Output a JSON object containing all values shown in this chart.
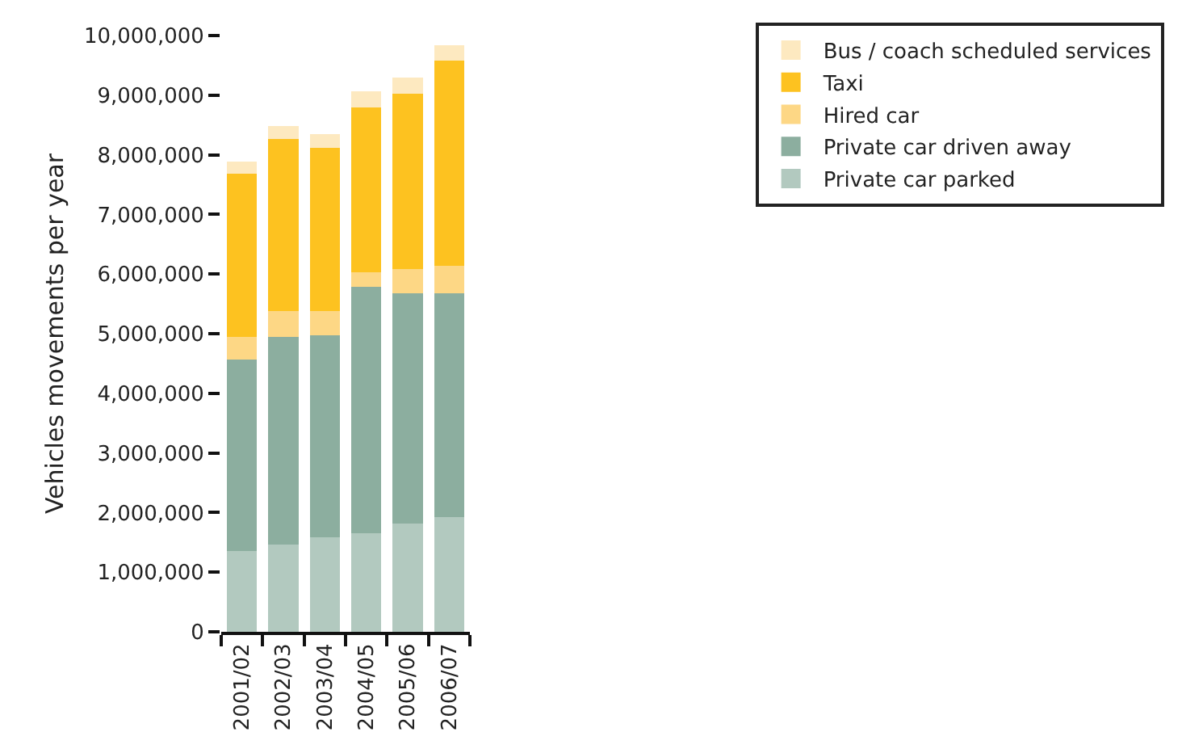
{
  "chart_data": {
    "type": "bar",
    "stacked": true,
    "ylabel": "Vehicles movements per year",
    "categories": [
      "2001/02",
      "2002/03",
      "2003/04",
      "2004/05",
      "2005/06",
      "2006/07"
    ],
    "series": [
      {
        "name": "Private car parked",
        "color": "#b2c9bf",
        "values": [
          1350000,
          1460000,
          1590000,
          1650000,
          1810000,
          1920000
        ]
      },
      {
        "name": "Private car driven away",
        "color": "#8cae9f",
        "values": [
          3220000,
          3490000,
          3380000,
          4130000,
          3870000,
          3760000
        ]
      },
      {
        "name": "Hired car",
        "color": "#fdd785",
        "values": [
          380000,
          430000,
          410000,
          250000,
          410000,
          460000
        ]
      },
      {
        "name": "Taxi",
        "color": "#fdc220",
        "values": [
          2730000,
          2880000,
          2730000,
          2770000,
          2940000,
          3440000
        ]
      },
      {
        "name": "Bus / coach scheduled services",
        "color": "#fde9c0",
        "values": [
          200000,
          220000,
          240000,
          270000,
          270000,
          260000
        ]
      }
    ],
    "ylim": [
      0,
      10000000
    ],
    "yticks": [
      {
        "value": 0,
        "label": "0"
      },
      {
        "value": 1000000,
        "label": "1,000,000"
      },
      {
        "value": 2000000,
        "label": "2,000,000"
      },
      {
        "value": 3000000,
        "label": "3,000,000"
      },
      {
        "value": 4000000,
        "label": "4,000,000"
      },
      {
        "value": 5000000,
        "label": "5,000,000"
      },
      {
        "value": 6000000,
        "label": "6,000,000"
      },
      {
        "value": 7000000,
        "label": "7,000,000"
      },
      {
        "value": 8000000,
        "label": "8,000,000"
      },
      {
        "value": 9000000,
        "label": "9,000,000"
      },
      {
        "value": 10000000,
        "label": "10,000,000"
      }
    ],
    "grid": false,
    "legend": "top right"
  }
}
